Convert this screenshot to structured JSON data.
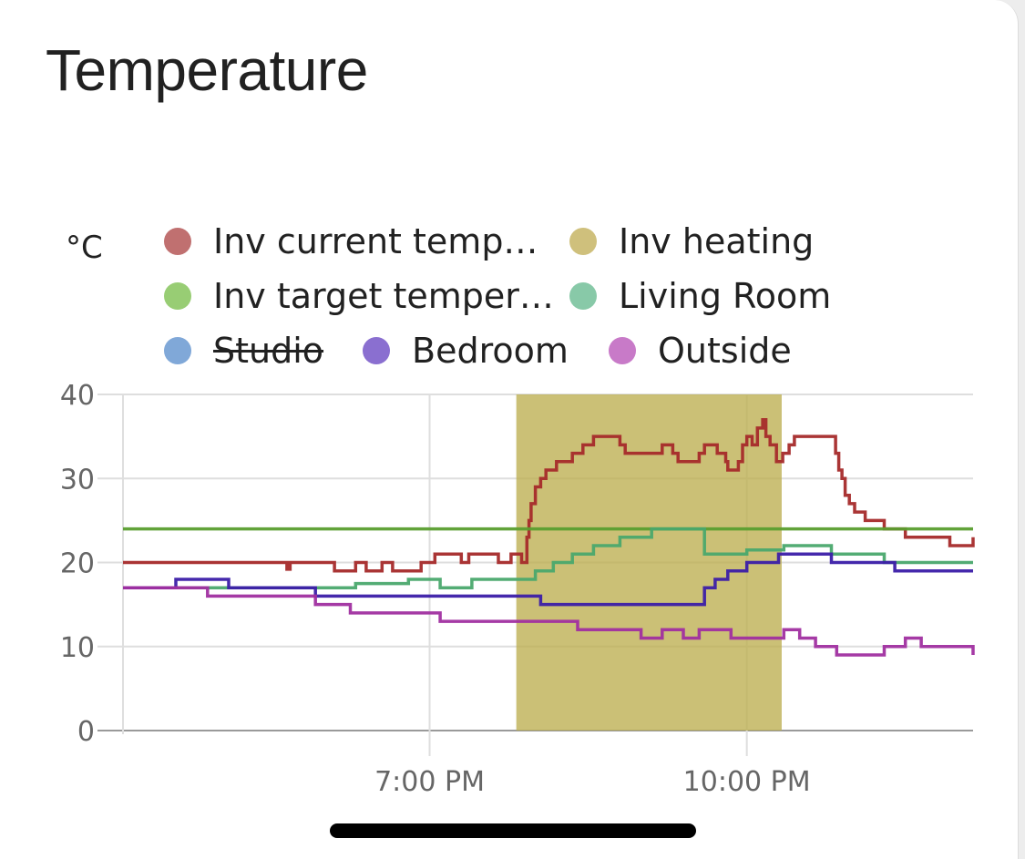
{
  "card": {
    "title": "Temperature"
  },
  "chart_data": {
    "type": "line",
    "unit_label": "°C",
    "ylim": [
      0,
      40
    ],
    "y_ticks": [
      0,
      10,
      20,
      30,
      40
    ],
    "x_ticks": [
      "7:00 PM",
      "10:00 PM"
    ],
    "x_tick_hours": [
      19,
      22
    ],
    "xlim": [
      16.1,
      24.14
    ],
    "grid": true,
    "legend_position": "top",
    "series": [
      {
        "name": "Inv current temp…",
        "color": "#a52a2a",
        "legend_color": "#c07070",
        "hidden": false,
        "kind": "line",
        "points": [
          [
            16.1,
            20
          ],
          [
            17.65,
            20
          ],
          [
            17.65,
            19.2
          ],
          [
            17.68,
            19.2
          ],
          [
            17.68,
            20
          ],
          [
            18.1,
            20
          ],
          [
            18.1,
            19
          ],
          [
            18.3,
            19
          ],
          [
            18.3,
            20
          ],
          [
            18.4,
            20
          ],
          [
            18.4,
            19
          ],
          [
            18.55,
            19
          ],
          [
            18.55,
            20
          ],
          [
            18.65,
            20
          ],
          [
            18.65,
            19
          ],
          [
            18.92,
            19
          ],
          [
            18.92,
            20
          ],
          [
            19.05,
            20
          ],
          [
            19.05,
            21
          ],
          [
            19.3,
            21
          ],
          [
            19.3,
            20
          ],
          [
            19.37,
            20
          ],
          [
            19.37,
            21
          ],
          [
            19.65,
            21
          ],
          [
            19.65,
            20
          ],
          [
            19.77,
            20
          ],
          [
            19.77,
            21
          ],
          [
            19.87,
            21
          ],
          [
            19.87,
            20
          ],
          [
            19.92,
            20
          ],
          [
            19.92,
            23
          ],
          [
            19.94,
            23
          ],
          [
            19.94,
            25
          ],
          [
            19.96,
            25
          ],
          [
            19.96,
            27
          ],
          [
            20.0,
            27
          ],
          [
            20.0,
            29
          ],
          [
            20.05,
            29
          ],
          [
            20.05,
            30
          ],
          [
            20.1,
            30
          ],
          [
            20.1,
            31
          ],
          [
            20.2,
            31
          ],
          [
            20.2,
            32
          ],
          [
            20.35,
            32
          ],
          [
            20.35,
            33
          ],
          [
            20.45,
            33
          ],
          [
            20.45,
            34
          ],
          [
            20.55,
            34
          ],
          [
            20.55,
            35
          ],
          [
            20.8,
            35
          ],
          [
            20.8,
            34
          ],
          [
            20.85,
            34
          ],
          [
            20.85,
            33
          ],
          [
            21.2,
            33
          ],
          [
            21.2,
            34
          ],
          [
            21.3,
            34
          ],
          [
            21.3,
            33
          ],
          [
            21.35,
            33
          ],
          [
            21.35,
            32
          ],
          [
            21.55,
            32
          ],
          [
            21.55,
            33
          ],
          [
            21.6,
            33
          ],
          [
            21.6,
            34
          ],
          [
            21.72,
            34
          ],
          [
            21.72,
            33
          ],
          [
            21.8,
            33
          ],
          [
            21.8,
            32
          ],
          [
            21.82,
            32
          ],
          [
            21.82,
            31
          ],
          [
            21.92,
            31
          ],
          [
            21.92,
            32
          ],
          [
            21.96,
            32
          ],
          [
            21.96,
            34
          ],
          [
            22.0,
            34
          ],
          [
            22.0,
            35
          ],
          [
            22.05,
            35
          ],
          [
            22.05,
            34
          ],
          [
            22.1,
            34
          ],
          [
            22.1,
            36
          ],
          [
            22.15,
            36
          ],
          [
            22.15,
            37
          ],
          [
            22.18,
            37
          ],
          [
            22.18,
            35
          ],
          [
            22.22,
            35
          ],
          [
            22.22,
            34
          ],
          [
            22.28,
            34
          ],
          [
            22.28,
            32
          ],
          [
            22.34,
            32
          ],
          [
            22.34,
            33
          ],
          [
            22.4,
            33
          ],
          [
            22.4,
            34
          ],
          [
            22.45,
            34
          ],
          [
            22.45,
            35
          ],
          [
            22.84,
            35
          ],
          [
            22.84,
            33
          ],
          [
            22.87,
            33
          ],
          [
            22.87,
            31
          ],
          [
            22.9,
            31
          ],
          [
            22.9,
            30
          ],
          [
            22.93,
            30
          ],
          [
            22.93,
            28
          ],
          [
            22.97,
            28
          ],
          [
            22.97,
            27
          ],
          [
            23.02,
            27
          ],
          [
            23.02,
            26
          ],
          [
            23.12,
            26
          ],
          [
            23.12,
            25
          ],
          [
            23.3,
            25
          ],
          [
            23.3,
            24
          ],
          [
            23.5,
            24
          ],
          [
            23.5,
            23
          ],
          [
            23.92,
            23
          ],
          [
            23.92,
            22
          ],
          [
            24.14,
            22
          ],
          [
            24.14,
            23
          ]
        ]
      },
      {
        "name": "Inv heating",
        "color": "#bcae4f",
        "legend_color": "#cfc07c",
        "hidden": false,
        "kind": "area",
        "points": [
          [
            19.82,
            0
          ],
          [
            19.82,
            40
          ],
          [
            22.33,
            40
          ],
          [
            22.33,
            0
          ]
        ]
      },
      {
        "name": "Inv target temper…",
        "color": "#5a9e2f",
        "legend_color": "#98cd74",
        "hidden": false,
        "kind": "line",
        "points": [
          [
            16.1,
            24
          ],
          [
            24.14,
            24
          ]
        ]
      },
      {
        "name": "Living Room",
        "color": "#4aa86d",
        "legend_color": "#88c9a8",
        "hidden": false,
        "kind": "line",
        "points": [
          [
            16.1,
            17
          ],
          [
            18.3,
            17
          ],
          [
            18.3,
            17.5
          ],
          [
            18.8,
            17.5
          ],
          [
            18.8,
            18
          ],
          [
            19.1,
            18
          ],
          [
            19.1,
            17
          ],
          [
            19.4,
            17
          ],
          [
            19.4,
            18
          ],
          [
            20.0,
            18
          ],
          [
            20.0,
            19
          ],
          [
            20.17,
            19
          ],
          [
            20.17,
            20
          ],
          [
            20.35,
            20
          ],
          [
            20.35,
            21
          ],
          [
            20.55,
            21
          ],
          [
            20.55,
            22
          ],
          [
            20.8,
            22
          ],
          [
            20.8,
            23
          ],
          [
            21.1,
            23
          ],
          [
            21.1,
            24
          ],
          [
            21.6,
            24
          ],
          [
            21.6,
            21
          ],
          [
            22.0,
            21
          ],
          [
            22.0,
            21.5
          ],
          [
            22.35,
            21.5
          ],
          [
            22.35,
            22
          ],
          [
            22.8,
            22
          ],
          [
            22.8,
            21
          ],
          [
            23.3,
            21
          ],
          [
            23.3,
            20
          ],
          [
            24.14,
            20
          ]
        ]
      },
      {
        "name": "Studio",
        "color": "#7aa6d8",
        "legend_color": "#80a8d8",
        "hidden": true,
        "kind": "line",
        "points": []
      },
      {
        "name": "Bedroom",
        "color": "#3b1ea8",
        "legend_color": "#8a6fd0",
        "hidden": false,
        "kind": "line",
        "points": [
          [
            16.1,
            17
          ],
          [
            16.6,
            17
          ],
          [
            16.6,
            18
          ],
          [
            17.1,
            18
          ],
          [
            17.1,
            17
          ],
          [
            17.92,
            17
          ],
          [
            17.92,
            16
          ],
          [
            19.0,
            16
          ],
          [
            19.0,
            16
          ],
          [
            19.82,
            16
          ],
          [
            20.05,
            16
          ],
          [
            20.05,
            15
          ],
          [
            21.6,
            15
          ],
          [
            21.6,
            17
          ],
          [
            21.7,
            17
          ],
          [
            21.7,
            18
          ],
          [
            21.82,
            18
          ],
          [
            21.82,
            19
          ],
          [
            22.0,
            19
          ],
          [
            22.0,
            20
          ],
          [
            22.3,
            20
          ],
          [
            22.3,
            21
          ],
          [
            22.8,
            21
          ],
          [
            22.8,
            20
          ],
          [
            23.2,
            20
          ],
          [
            23.2,
            20
          ],
          [
            23.4,
            20
          ],
          [
            23.4,
            19
          ],
          [
            24.14,
            19
          ]
        ]
      },
      {
        "name": "Outside",
        "color": "#a02fa0",
        "legend_color": "#c87ac8",
        "hidden": false,
        "kind": "line",
        "points": [
          [
            16.1,
            17
          ],
          [
            16.9,
            17
          ],
          [
            16.9,
            16
          ],
          [
            17.92,
            16
          ],
          [
            17.92,
            15
          ],
          [
            18.25,
            15
          ],
          [
            18.25,
            14
          ],
          [
            19.1,
            14
          ],
          [
            19.1,
            13
          ],
          [
            20.4,
            13
          ],
          [
            20.4,
            12
          ],
          [
            21.0,
            12
          ],
          [
            21.0,
            11
          ],
          [
            21.2,
            11
          ],
          [
            21.2,
            12
          ],
          [
            21.4,
            12
          ],
          [
            21.4,
            11
          ],
          [
            21.55,
            11
          ],
          [
            21.55,
            12
          ],
          [
            21.85,
            12
          ],
          [
            21.85,
            11
          ],
          [
            22.35,
            11
          ],
          [
            22.35,
            12
          ],
          [
            22.5,
            12
          ],
          [
            22.5,
            11
          ],
          [
            22.65,
            11
          ],
          [
            22.65,
            10
          ],
          [
            22.85,
            10
          ],
          [
            22.85,
            9
          ],
          [
            23.3,
            9
          ],
          [
            23.3,
            10
          ],
          [
            23.5,
            10
          ],
          [
            23.5,
            11
          ],
          [
            23.65,
            11
          ],
          [
            23.65,
            10
          ],
          [
            24.14,
            10
          ],
          [
            24.14,
            9
          ]
        ]
      }
    ]
  }
}
